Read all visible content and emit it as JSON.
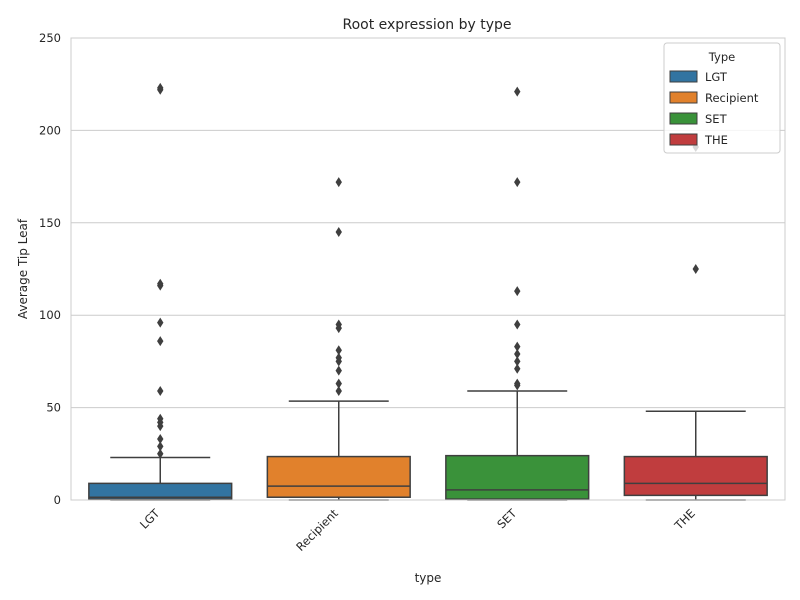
{
  "chart_data": {
    "type": "box",
    "title": "Root expression by type",
    "xlabel": "type",
    "ylabel": "Average Tip Leaf",
    "ylim": [
      0,
      250
    ],
    "yticks": [
      0,
      50,
      100,
      150,
      200,
      250
    ],
    "grid": true,
    "legend": {
      "title": "Type",
      "placement": "top-right",
      "entries": [
        "LGT",
        "Recipient",
        "SET",
        "THE"
      ]
    },
    "series": [
      {
        "name": "LGT",
        "color": "#3274a1",
        "whisker_low": 0,
        "q1": 0.5,
        "median": 1.5,
        "q3": 9,
        "whisker_high": 23,
        "outliers": [
          222,
          223,
          116,
          117,
          96,
          86,
          59,
          44,
          42,
          40,
          33,
          29,
          25
        ]
      },
      {
        "name": "Recipient",
        "color": "#e1812c",
        "whisker_low": 0,
        "q1": 1.5,
        "median": 7.5,
        "q3": 23.5,
        "whisker_high": 53.5,
        "outliers": [
          172,
          145,
          95,
          93,
          81,
          77,
          75,
          70,
          63,
          59
        ]
      },
      {
        "name": "SET",
        "color": "#3a923a",
        "whisker_low": 0,
        "q1": 0.5,
        "median": 5.5,
        "q3": 24,
        "whisker_high": 59,
        "outliers": [
          221,
          172,
          113,
          95,
          83,
          79,
          75,
          71,
          63,
          62
        ]
      },
      {
        "name": "THE",
        "color": "#c03d3e",
        "whisker_low": 0,
        "q1": 2.5,
        "median": 9,
        "q3": 23.5,
        "whisker_high": 48,
        "outliers": [
          191,
          125
        ]
      }
    ]
  }
}
